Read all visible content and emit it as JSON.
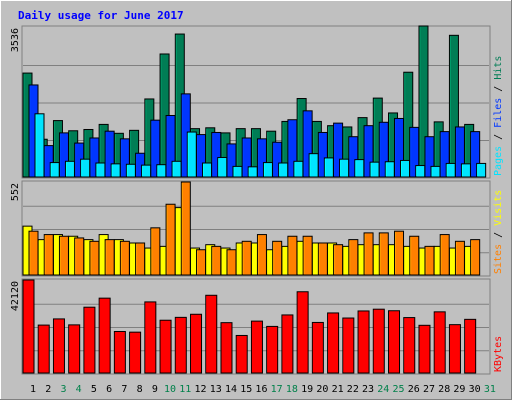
{
  "title": "Daily usage for June 2017",
  "colors": {
    "background": "#c0c0c0",
    "frame_dark": "#808080",
    "title": "#0000ff",
    "grid": "#808080",
    "hits": "#007d55",
    "files": "#0036ff",
    "pages": "#00e4ff",
    "visits": "#ffff00",
    "sites": "#ff8000",
    "kbytes": "#ff0000",
    "weekend_label": "#00804a",
    "weekday_label": "#000000"
  },
  "chart_data": [
    {
      "type": "bar",
      "panel": "hits-files-pages",
      "max_label": "3536",
      "ylim": [
        0,
        3536
      ],
      "legend": [
        {
          "text": "Pages",
          "color_key": "pages"
        },
        {
          "text": " / ",
          "color_key": "weekday_label"
        },
        {
          "text": "Files",
          "color_key": "files"
        },
        {
          "text": " / ",
          "color_key": "weekday_label"
        },
        {
          "text": "Hits",
          "color_key": "hits"
        }
      ],
      "categories": [
        "1",
        "2",
        "3",
        "4",
        "5",
        "6",
        "7",
        "8",
        "9",
        "10",
        "11",
        "12",
        "13",
        "14",
        "15",
        "16",
        "17",
        "18",
        "19",
        "20",
        "21",
        "22",
        "23",
        "24",
        "25",
        "26",
        "27",
        "28",
        "29",
        "30",
        "31"
      ],
      "series": [
        {
          "name": "Hits",
          "color_key": "hits",
          "values": [
            2450,
            890,
            1330,
            1090,
            1120,
            1240,
            1030,
            1100,
            1840,
            2900,
            3370,
            1140,
            1160,
            1040,
            1140,
            1140,
            1080,
            1310,
            1850,
            1310,
            1210,
            1180,
            1400,
            1860,
            1510,
            2470,
            3560,
            1300,
            3340,
            1240,
            0
          ]
        },
        {
          "name": "Files",
          "color_key": "files",
          "values": [
            2170,
            740,
            1040,
            800,
            920,
            1080,
            900,
            560,
            1340,
            1450,
            1960,
            1000,
            1050,
            780,
            920,
            900,
            820,
            1350,
            1560,
            1050,
            1270,
            950,
            1210,
            1290,
            1380,
            1170,
            950,
            1070,
            1180,
            1070,
            0
          ]
        },
        {
          "name": "Pages",
          "color_key": "pages",
          "values": [
            1490,
            340,
            370,
            420,
            330,
            310,
            300,
            280,
            290,
            370,
            1060,
            330,
            460,
            250,
            240,
            340,
            330,
            370,
            550,
            450,
            420,
            410,
            350,
            360,
            390,
            270,
            250,
            320,
            310,
            320,
            0
          ]
        }
      ]
    },
    {
      "type": "bar",
      "panel": "visits-sites",
      "max_label": "552",
      "ylim": [
        0,
        552
      ],
      "legend": [
        {
          "text": "Sites",
          "color_key": "sites"
        },
        {
          "text": " / ",
          "color_key": "weekday_label"
        },
        {
          "text": "Visits",
          "color_key": "visits"
        }
      ],
      "categories": [
        "1",
        "2",
        "3",
        "4",
        "5",
        "6",
        "7",
        "8",
        "9",
        "10",
        "11",
        "12",
        "13",
        "14",
        "15",
        "16",
        "17",
        "18",
        "19",
        "20",
        "21",
        "22",
        "23",
        "24",
        "25",
        "26",
        "27",
        "28",
        "29",
        "30",
        "31"
      ],
      "series": [
        {
          "name": "Visits",
          "color_key": "visits",
          "values": [
            290,
            210,
            240,
            230,
            210,
            240,
            210,
            190,
            160,
            170,
            400,
            160,
            180,
            160,
            190,
            190,
            150,
            170,
            200,
            190,
            190,
            170,
            180,
            180,
            180,
            170,
            160,
            170,
            160,
            170,
            0
          ]
        },
        {
          "name": "Sites",
          "color_key": "sites",
          "values": [
            260,
            240,
            230,
            220,
            200,
            210,
            200,
            190,
            280,
            420,
            552,
            150,
            170,
            150,
            200,
            240,
            200,
            230,
            230,
            190,
            180,
            210,
            250,
            250,
            260,
            230,
            170,
            240,
            200,
            210,
            0
          ]
        }
      ]
    },
    {
      "type": "bar",
      "panel": "kbytes",
      "max_label": "42120",
      "ylim": [
        0,
        42120
      ],
      "legend": [
        {
          "text": "KBytes",
          "color_key": "kbytes"
        }
      ],
      "categories": [
        "1",
        "2",
        "3",
        "4",
        "5",
        "6",
        "7",
        "8",
        "9",
        "10",
        "11",
        "12",
        "13",
        "14",
        "15",
        "16",
        "17",
        "18",
        "19",
        "20",
        "21",
        "22",
        "23",
        "24",
        "25",
        "26",
        "27",
        "28",
        "29",
        "30",
        "31"
      ],
      "series": [
        {
          "name": "KBytes",
          "color_key": "kbytes",
          "values": [
            42120,
            21700,
            24500,
            21800,
            29800,
            33900,
            18800,
            18500,
            32200,
            23900,
            25200,
            26600,
            35200,
            22800,
            17000,
            23500,
            21100,
            26300,
            36800,
            22900,
            27200,
            24900,
            28100,
            28900,
            28200,
            25100,
            21600,
            27700,
            21900,
            24300,
            0
          ]
        }
      ]
    }
  ],
  "x_labels": [
    {
      "text": "1",
      "weekend": false
    },
    {
      "text": "2",
      "weekend": false
    },
    {
      "text": "3",
      "weekend": true
    },
    {
      "text": "4",
      "weekend": true
    },
    {
      "text": "5",
      "weekend": false
    },
    {
      "text": "6",
      "weekend": false
    },
    {
      "text": "7",
      "weekend": false
    },
    {
      "text": "8",
      "weekend": false
    },
    {
      "text": "9",
      "weekend": false
    },
    {
      "text": "10",
      "weekend": true
    },
    {
      "text": "11",
      "weekend": true
    },
    {
      "text": "12",
      "weekend": false
    },
    {
      "text": "13",
      "weekend": false
    },
    {
      "text": "14",
      "weekend": false
    },
    {
      "text": "15",
      "weekend": false
    },
    {
      "text": "16",
      "weekend": false
    },
    {
      "text": "17",
      "weekend": true
    },
    {
      "text": "18",
      "weekend": true
    },
    {
      "text": "19",
      "weekend": false
    },
    {
      "text": "20",
      "weekend": false
    },
    {
      "text": "21",
      "weekend": false
    },
    {
      "text": "22",
      "weekend": false
    },
    {
      "text": "23",
      "weekend": false
    },
    {
      "text": "24",
      "weekend": true
    },
    {
      "text": "25",
      "weekend": true
    },
    {
      "text": "26",
      "weekend": false
    },
    {
      "text": "27",
      "weekend": false
    },
    {
      "text": "28",
      "weekend": false
    },
    {
      "text": "29",
      "weekend": false
    },
    {
      "text": "30",
      "weekend": false
    },
    {
      "text": "31",
      "weekend": true
    }
  ]
}
